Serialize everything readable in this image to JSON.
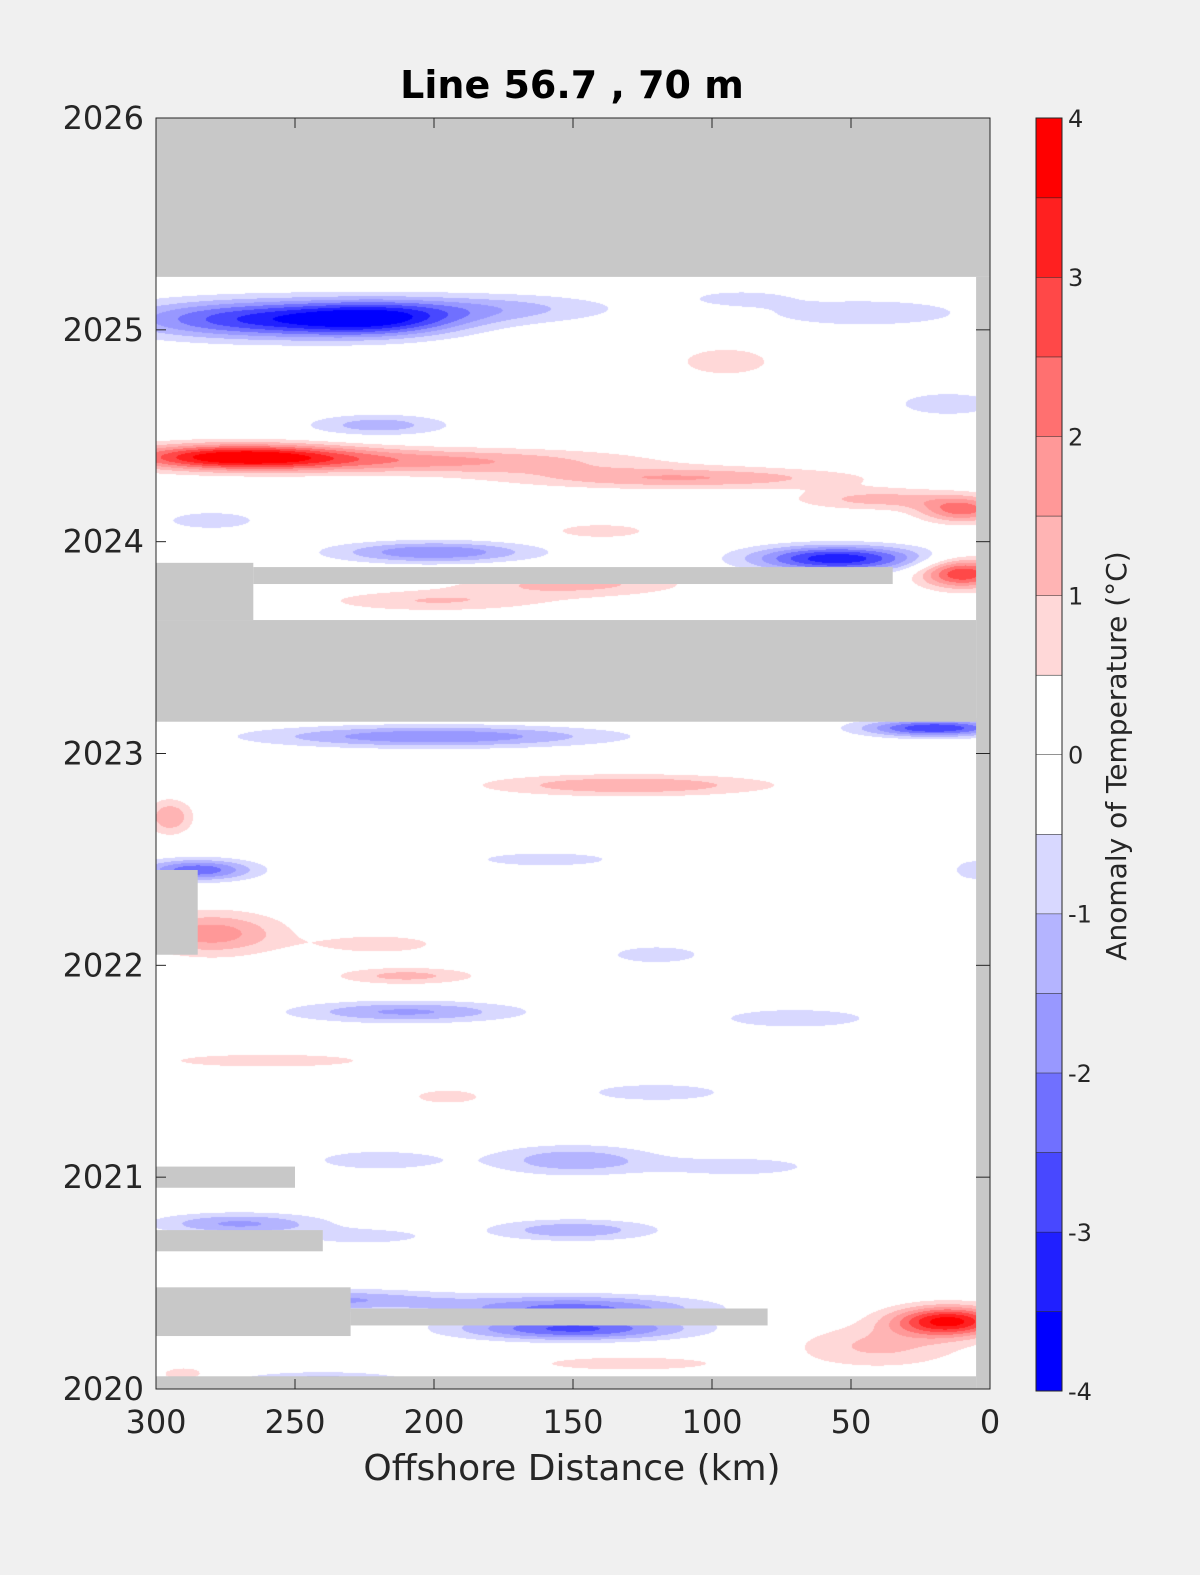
{
  "chart_data": {
    "type": "heatmap",
    "title": "Line 56.7 , 70 m",
    "xlabel": "Offshore Distance (km)",
    "ylabel": "",
    "xlim": [
      300,
      0
    ],
    "ylim": [
      2020,
      2026
    ],
    "x_ticks": [
      "300",
      "250",
      "200",
      "150",
      "100",
      "50",
      "0"
    ],
    "y_ticks": [
      "2020",
      "2021",
      "2022",
      "2023",
      "2024",
      "2025",
      "2026"
    ],
    "colorbar": {
      "label": "Anomaly of Temperature (°C)",
      "range": [
        -4,
        4
      ],
      "step": 0.5,
      "ticks": [
        "4",
        "3",
        "2",
        "1",
        "0",
        "-1",
        "-2",
        "-3",
        "-4"
      ]
    },
    "colors": {
      "missing": "#c8c8c8",
      "neg": [
        "#0000ff",
        "#2020ff",
        "#4848ff",
        "#7070ff",
        "#9898ff",
        "#b4b4ff",
        "#d8d8ff"
      ],
      "pos": [
        "#ffd8d8",
        "#ffb4b4",
        "#ff9898",
        "#ff7070",
        "#ff4848",
        "#ff2020",
        "#ff0000"
      ]
    },
    "no_data_bands": [
      {
        "y": [
          2025.25,
          2026
        ],
        "x": [
          300,
          0
        ]
      },
      {
        "y": [
          2023.15,
          2023.63
        ],
        "x": [
          300,
          5
        ]
      },
      {
        "y": [
          2023.63,
          2023.9
        ],
        "x": [
          300,
          265
        ]
      },
      {
        "y": [
          2023.8,
          2023.88
        ],
        "x": [
          265,
          35
        ]
      },
      {
        "y": [
          2022.05,
          2022.45
        ],
        "x": [
          300,
          285
        ]
      },
      {
        "y": [
          2020.95,
          2021.05
        ],
        "x": [
          300,
          250
        ]
      },
      {
        "y": [
          2020.65,
          2020.75
        ],
        "x": [
          300,
          240
        ]
      },
      {
        "y": [
          2020.25,
          2020.48
        ],
        "x": [
          300,
          230
        ]
      },
      {
        "y": [
          2020.3,
          2020.38
        ],
        "x": [
          230,
          80
        ]
      },
      {
        "y": [
          2020,
          2020.06
        ],
        "x": [
          300,
          5
        ]
      },
      {
        "y": [
          2020,
          2025.25
        ],
        "x": [
          5,
          0
        ]
      }
    ],
    "anomaly_patches": [
      {
        "x": 260,
        "y": 2025.05,
        "wx": 50,
        "wy": 0.09,
        "v": -3.0
      },
      {
        "x": 220,
        "y": 2025.05,
        "wx": 30,
        "wy": 0.08,
        "v": -2.3
      },
      {
        "x": 180,
        "y": 2025.1,
        "wx": 45,
        "wy": 0.07,
        "v": -1.2
      },
      {
        "x": 45,
        "y": 2025.08,
        "wx": 40,
        "wy": 0.07,
        "v": -0.9
      },
      {
        "x": 90,
        "y": 2025.15,
        "wx": 20,
        "wy": 0.04,
        "v": -0.7
      },
      {
        "x": 95,
        "y": 2024.85,
        "wx": 20,
        "wy": 0.08,
        "v": 0.8
      },
      {
        "x": 15,
        "y": 2024.65,
        "wx": 20,
        "wy": 0.06,
        "v": -0.9
      },
      {
        "x": 220,
        "y": 2024.55,
        "wx": 25,
        "wy": 0.05,
        "v": -1.3
      },
      {
        "x": 270,
        "y": 2024.4,
        "wx": 40,
        "wy": 0.06,
        "v": 3.8
      },
      {
        "x": 200,
        "y": 2024.38,
        "wx": 70,
        "wy": 0.06,
        "v": 1.6
      },
      {
        "x": 110,
        "y": 2024.3,
        "wx": 60,
        "wy": 0.05,
        "v": 1.5
      },
      {
        "x": 40,
        "y": 2024.2,
        "wx": 30,
        "wy": 0.05,
        "v": 1.2
      },
      {
        "x": 10,
        "y": 2024.15,
        "wx": 15,
        "wy": 0.06,
        "v": 2.2
      },
      {
        "x": 280,
        "y": 2024.1,
        "wx": 20,
        "wy": 0.05,
        "v": -0.8
      },
      {
        "x": 140,
        "y": 2024.05,
        "wx": 20,
        "wy": 0.04,
        "v": 0.8
      },
      {
        "x": 200,
        "y": 2023.95,
        "wx": 35,
        "wy": 0.05,
        "v": -2.0
      },
      {
        "x": 55,
        "y": 2023.92,
        "wx": 30,
        "wy": 0.06,
        "v": -3.4
      },
      {
        "x": 10,
        "y": 2023.85,
        "wx": 15,
        "wy": 0.07,
        "v": 3.0
      },
      {
        "x": 150,
        "y": 2023.8,
        "wx": 40,
        "wy": 0.06,
        "v": 1.2
      },
      {
        "x": 200,
        "y": 2023.72,
        "wx": 40,
        "wy": 0.05,
        "v": 1.0
      },
      {
        "x": 200,
        "y": 2023.08,
        "wx": 60,
        "wy": 0.05,
        "v": -2.0
      },
      {
        "x": 20,
        "y": 2023.12,
        "wx": 25,
        "wy": 0.04,
        "v": -3.0
      },
      {
        "x": 130,
        "y": 2022.85,
        "wx": 50,
        "wy": 0.05,
        "v": 1.5
      },
      {
        "x": 295,
        "y": 2022.7,
        "wx": 8,
        "wy": 0.08,
        "v": 1.5
      },
      {
        "x": 285,
        "y": 2022.45,
        "wx": 20,
        "wy": 0.05,
        "v": -2.4
      },
      {
        "x": 160,
        "y": 2022.5,
        "wx": 30,
        "wy": 0.04,
        "v": -0.8
      },
      {
        "x": 5,
        "y": 2022.45,
        "wx": 10,
        "wy": 0.06,
        "v": -0.8
      },
      {
        "x": 280,
        "y": 2022.15,
        "wx": 25,
        "wy": 0.1,
        "v": 1.8
      },
      {
        "x": 220,
        "y": 2022.1,
        "wx": 25,
        "wy": 0.05,
        "v": 0.8
      },
      {
        "x": 210,
        "y": 2021.95,
        "wx": 25,
        "wy": 0.04,
        "v": 1.2
      },
      {
        "x": 120,
        "y": 2022.05,
        "wx": 20,
        "wy": 0.05,
        "v": -0.8
      },
      {
        "x": 210,
        "y": 2021.78,
        "wx": 40,
        "wy": 0.05,
        "v": -1.6
      },
      {
        "x": 70,
        "y": 2021.75,
        "wx": 30,
        "wy": 0.05,
        "v": -0.9
      },
      {
        "x": 260,
        "y": 2021.55,
        "wx": 45,
        "wy": 0.04,
        "v": 0.8
      },
      {
        "x": 120,
        "y": 2021.4,
        "wx": 30,
        "wy": 0.05,
        "v": -0.8
      },
      {
        "x": 195,
        "y": 2021.38,
        "wx": 15,
        "wy": 0.04,
        "v": 0.8
      },
      {
        "x": 150,
        "y": 2021.08,
        "wx": 30,
        "wy": 0.07,
        "v": -1.4
      },
      {
        "x": 220,
        "y": 2021.08,
        "wx": 25,
        "wy": 0.05,
        "v": -0.9
      },
      {
        "x": 90,
        "y": 2021.05,
        "wx": 30,
        "wy": 0.05,
        "v": -0.8
      },
      {
        "x": 270,
        "y": 2020.78,
        "wx": 30,
        "wy": 0.05,
        "v": -1.6
      },
      {
        "x": 150,
        "y": 2020.75,
        "wx": 30,
        "wy": 0.05,
        "v": -1.4
      },
      {
        "x": 225,
        "y": 2020.72,
        "wx": 25,
        "wy": 0.04,
        "v": -0.8
      },
      {
        "x": 15,
        "y": 2020.32,
        "wx": 20,
        "wy": 0.07,
        "v": 3.7
      },
      {
        "x": 40,
        "y": 2020.2,
        "wx": 30,
        "wy": 0.1,
        "v": 1.1
      },
      {
        "x": 240,
        "y": 2020.42,
        "wx": 45,
        "wy": 0.05,
        "v": -1.6
      },
      {
        "x": 150,
        "y": 2020.38,
        "wx": 45,
        "wy": 0.06,
        "v": -2.2
      },
      {
        "x": 150,
        "y": 2020.28,
        "wx": 40,
        "wy": 0.05,
        "v": -2.5
      },
      {
        "x": 130,
        "y": 2020.12,
        "wx": 40,
        "wy": 0.04,
        "v": 0.8
      },
      {
        "x": 240,
        "y": 2020.04,
        "wx": 30,
        "wy": 0.04,
        "v": -1.3
      },
      {
        "x": 290,
        "y": 2020.07,
        "wx": 10,
        "wy": 0.04,
        "v": 0.8
      }
    ]
  }
}
